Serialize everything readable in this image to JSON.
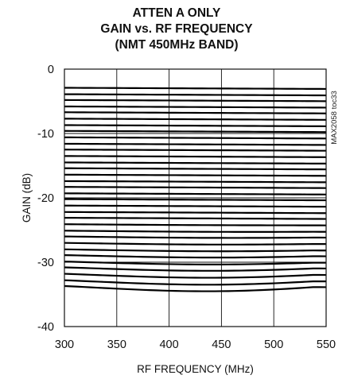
{
  "chart_data": {
    "type": "line",
    "title_lines": [
      "ATTEN A ONLY",
      "GAIN vs. RF FREQUENCY",
      "(NMT 450MHz BAND)"
    ],
    "xlabel": "RF FREQUENCY (MHz)",
    "ylabel": "GAIN (dB)",
    "xlim": [
      300,
      550
    ],
    "ylim": [
      -40,
      0
    ],
    "x_ticks": [
      300,
      350,
      400,
      450,
      500,
      550
    ],
    "y_ticks": [
      0,
      -10,
      -20,
      -30,
      -40
    ],
    "grid": true,
    "watermark": "MAX2058 toc33",
    "x": [
      300,
      350,
      400,
      450,
      500,
      550
    ],
    "series_start": [
      -2.9,
      -3.9,
      -4.8,
      -5.8,
      -6.7,
      -7.7,
      -8.7,
      -9.6,
      -10.6,
      -11.6,
      -12.5,
      -13.5,
      -14.5,
      -15.4,
      -16.4,
      -17.4,
      -18.3,
      -19.3,
      -20.2,
      -21.2,
      -22.2,
      -23.1,
      -24.1,
      -25.1,
      -26.0,
      -27.0,
      -28.0,
      -28.9,
      -29.9,
      -30.8,
      -31.8,
      -32.8,
      -33.7
    ],
    "series_sag": [
      0.0,
      0.0,
      0.0,
      0.0,
      0.0,
      0.0,
      0.0,
      0.0,
      0.0,
      0.0,
      0.0,
      0.0,
      0.0,
      0.0,
      0.0,
      0.0,
      0.0,
      0.0,
      0.0,
      0.0,
      0.0,
      0.0,
      0.05,
      0.1,
      0.15,
      0.2,
      0.25,
      0.35,
      0.45,
      0.55,
      0.65,
      0.75,
      0.9
    ]
  }
}
